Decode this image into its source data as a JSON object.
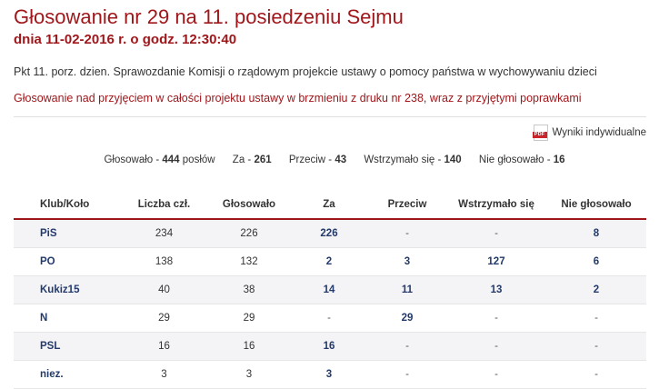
{
  "header": {
    "title": "Głosowanie nr 29 na 11. posiedzeniu Sejmu",
    "subtitle": "dnia 11-02-2016 r. o godz. 12:30:40"
  },
  "agenda_item": "Pkt 11. porz. dzien. Sprawozdanie Komisji o rządowym projekcie ustawy o pomocy państwa w wychowywaniu dzieci",
  "motion": "Głosowanie nad przyjęciem w całości projektu ustawy w brzmieniu z druku nr 238, wraz z przyjętymi poprawkami",
  "individual_results_link": {
    "icon": "pdf-file-icon",
    "icon_text": "PDF",
    "label": "Wyniki indywidualne"
  },
  "summary": {
    "voted_label": "Głosowało -",
    "voted_value": "444",
    "voted_unit": "posłów",
    "for_label": "Za -",
    "for_value": "261",
    "against_label": "Przeciw -",
    "against_value": "43",
    "abstained_label": "Wstrzymało się -",
    "abstained_value": "140",
    "not_voted_label": "Nie głosowało -",
    "not_voted_value": "16"
  },
  "table": {
    "headers": [
      "Klub/Koło",
      "Liczba czł.",
      "Głosowało",
      "Za",
      "Przeciw",
      "Wstrzymało się",
      "Nie głosowało"
    ],
    "rows": [
      [
        "PiS",
        "234",
        "226",
        "226",
        "-",
        "-",
        "8"
      ],
      [
        "PO",
        "138",
        "132",
        "2",
        "3",
        "127",
        "6"
      ],
      [
        "Kukiz15",
        "40",
        "38",
        "14",
        "11",
        "13",
        "2"
      ],
      [
        "N",
        "29",
        "29",
        "-",
        "29",
        "-",
        "-"
      ],
      [
        "PSL",
        "16",
        "16",
        "16",
        "-",
        "-",
        "-"
      ],
      [
        "niez.",
        "3",
        "3",
        "3",
        "-",
        "-",
        "-"
      ]
    ]
  },
  "colors": {
    "accent": "#a0171b",
    "link": "#233a6b",
    "row_alt": "#f4f4f7"
  }
}
